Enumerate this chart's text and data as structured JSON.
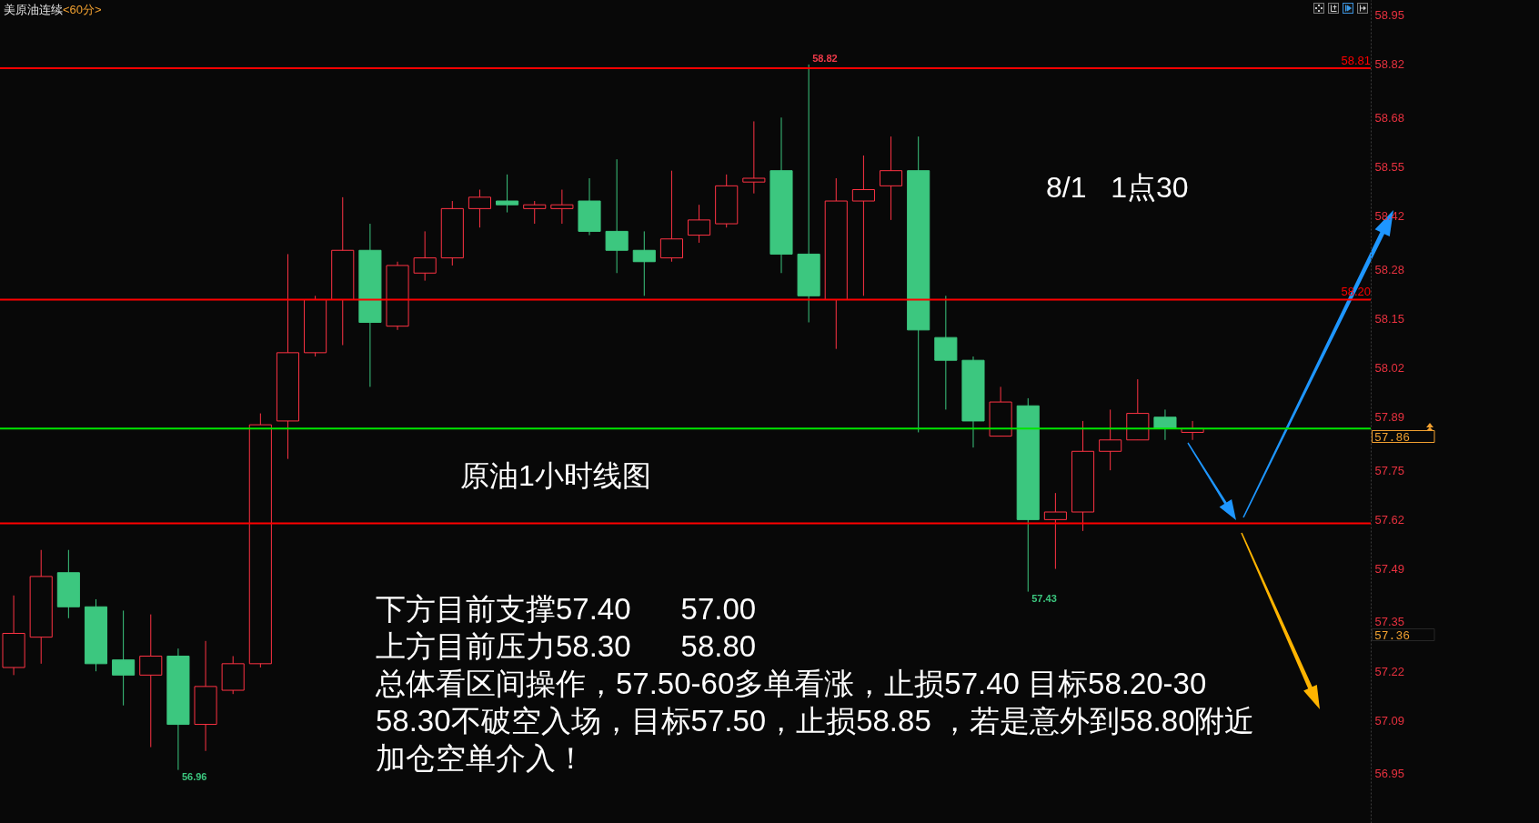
{
  "chart_data": {
    "type": "candlestick",
    "title": "美原油连续",
    "subtitle": "<60分>",
    "categories": [
      null,
      null,
      null,
      null,
      null,
      null,
      null,
      null,
      null,
      null,
      null,
      null,
      null,
      null,
      null,
      null,
      null,
      null,
      null,
      null,
      null,
      null,
      null,
      null,
      null,
      null,
      null,
      null,
      null,
      null,
      null,
      null,
      null,
      null,
      null,
      null,
      null,
      null,
      null,
      null,
      null,
      null,
      null,
      null,
      null,
      null,
      null,
      null,
      null,
      null
    ],
    "ohlc": [
      [
        57.23,
        57.42,
        57.21,
        57.32
      ],
      [
        57.31,
        57.54,
        57.24,
        57.47
      ],
      [
        57.48,
        57.54,
        57.36,
        57.39
      ],
      [
        57.39,
        57.41,
        57.22,
        57.24
      ],
      [
        57.25,
        57.38,
        57.13,
        57.21
      ],
      [
        57.21,
        57.37,
        57.02,
        57.26
      ],
      [
        57.26,
        57.28,
        56.96,
        57.08
      ],
      [
        57.08,
        57.3,
        57.01,
        57.18
      ],
      [
        57.17,
        57.26,
        57.16,
        57.24
      ],
      [
        57.24,
        57.9,
        57.23,
        57.87
      ],
      [
        57.88,
        58.32,
        57.78,
        58.06
      ],
      [
        58.06,
        58.21,
        58.05,
        58.2
      ],
      [
        58.2,
        58.47,
        58.08,
        58.33
      ],
      [
        58.33,
        58.4,
        57.97,
        58.14
      ],
      [
        58.13,
        58.3,
        58.12,
        58.29
      ],
      [
        58.27,
        58.38,
        58.25,
        58.31
      ],
      [
        58.31,
        58.46,
        58.29,
        58.44
      ],
      [
        58.44,
        58.49,
        58.39,
        58.47
      ],
      [
        58.46,
        58.53,
        58.43,
        58.45
      ],
      [
        58.44,
        58.46,
        58.4,
        58.45
      ],
      [
        58.44,
        58.49,
        58.4,
        58.45
      ],
      [
        58.46,
        58.52,
        58.37,
        58.38
      ],
      [
        58.38,
        58.57,
        58.27,
        58.33
      ],
      [
        58.33,
        58.38,
        58.21,
        58.3
      ],
      [
        58.31,
        58.54,
        58.3,
        58.36
      ],
      [
        58.37,
        58.45,
        58.35,
        58.41
      ],
      [
        58.4,
        58.53,
        58.39,
        58.5
      ],
      [
        58.51,
        58.67,
        58.48,
        58.52
      ],
      [
        58.54,
        58.68,
        58.27,
        58.32
      ],
      [
        58.32,
        58.82,
        58.14,
        58.21
      ],
      [
        58.2,
        58.52,
        58.07,
        58.46
      ],
      [
        58.46,
        58.58,
        58.21,
        58.49
      ],
      [
        58.5,
        58.63,
        58.41,
        58.54
      ],
      [
        58.54,
        58.63,
        57.85,
        58.12
      ],
      [
        58.1,
        58.21,
        57.91,
        58.04
      ],
      [
        58.04,
        58.05,
        57.81,
        57.88
      ],
      [
        57.84,
        57.97,
        57.84,
        57.93
      ],
      [
        57.92,
        57.94,
        57.43,
        57.62
      ],
      [
        57.62,
        57.69,
        57.49,
        57.64
      ],
      [
        57.64,
        57.88,
        57.59,
        57.8
      ],
      [
        57.8,
        57.91,
        57.75,
        57.83
      ],
      [
        57.83,
        57.99,
        57.83,
        57.9
      ],
      [
        57.89,
        57.91,
        57.83,
        57.86
      ],
      [
        57.85,
        57.88,
        57.83,
        57.86
      ],
      null,
      null,
      null,
      null,
      null,
      null
    ],
    "colors": [
      "#ff3344",
      "#ff3344",
      "#3cc77f",
      "#3cc77f",
      "#3cc77f",
      "#ff3344",
      "#3cc77f",
      "#ff3344",
      "#ff3344",
      "#ff3344",
      "#ff3344",
      "#ff3344",
      "#ff3344",
      "#3cc77f",
      "#ff3344",
      "#ff3344",
      "#ff3344",
      "#ff3344",
      "#3cc77f",
      "#ff3344",
      "#ff3344",
      "#3cc77f",
      "#3cc77f",
      "#3cc77f",
      "#ff3344",
      "#ff3344",
      "#ff3344",
      "#ff3344",
      "#3cc77f",
      "#3cc77f",
      "#ff3344",
      "#ff3344",
      "#ff3344",
      "#3cc77f",
      "#3cc77f",
      "#3cc77f",
      "#ff3344",
      "#3cc77f",
      "#ff3344",
      "#ff3344",
      "#ff3344",
      "#ff3344",
      "#3cc77f",
      "#ff3344",
      null,
      null,
      null,
      null,
      null,
      null
    ],
    "value_labels": [
      null,
      null,
      null,
      null,
      null,
      null,
      "56.96",
      null,
      null,
      null,
      null,
      null,
      null,
      null,
      null,
      null,
      null,
      null,
      null,
      null,
      null,
      null,
      null,
      null,
      null,
      null,
      null,
      null,
      null,
      "58.82",
      null,
      null,
      null,
      null,
      null,
      null,
      null,
      "57.43",
      null,
      null,
      null,
      null,
      null,
      null,
      null,
      null,
      null,
      null,
      null,
      null
    ],
    "ylim": [
      56.82,
      58.99
    ],
    "yticks": [
      56.95,
      57.09,
      57.22,
      57.35,
      57.49,
      57.62,
      57.75,
      57.89,
      58.02,
      58.15,
      58.28,
      58.42,
      58.55,
      58.68,
      58.82,
      58.95
    ],
    "ref_lines": [
      {
        "axis": "y",
        "value": 58.81,
        "label": "58.81",
        "color": "#ff0000"
      },
      {
        "axis": "y",
        "value": 58.2,
        "label": "58.20",
        "color": "#ff0000"
      },
      {
        "axis": "y",
        "value": 57.86,
        "color": "#00e600"
      },
      {
        "axis": "y",
        "value": 57.61,
        "color": "#ff0000"
      }
    ],
    "annotations": [
      "原油1小时线图",
      "8/1   1点30",
      "下方目前支撑57.40      57.00",
      "上方目前压力58.30      58.80",
      "总体看区间操作，57.50-60多单看涨，止损57.40 目标58.20-30",
      "58.30不破空入场，目标57.50，止损58.85 ，若是意外到58.80附近",
      "加仓空单介入！",
      "57.86",
      "57.36"
    ]
  }
}
